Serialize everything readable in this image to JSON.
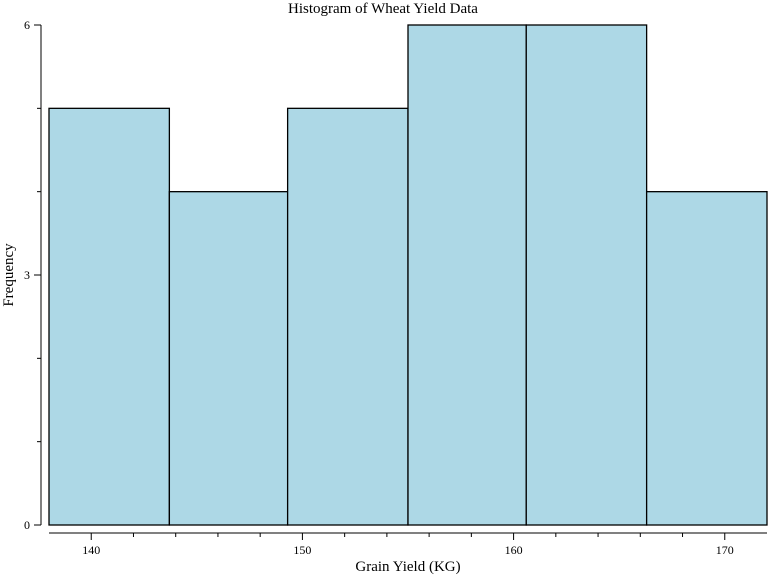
{
  "chart_data": {
    "type": "bar",
    "title": "Histogram of Wheat Yield Data",
    "xlabel": "Grain Yield (KG)",
    "ylabel": "Frequency",
    "bins": [
      {
        "start": 138.0,
        "end": 143.7,
        "count": 5
      },
      {
        "start": 143.7,
        "end": 149.3,
        "count": 4
      },
      {
        "start": 149.3,
        "end": 155.0,
        "count": 5
      },
      {
        "start": 155.0,
        "end": 160.6,
        "count": 6
      },
      {
        "start": 160.6,
        "end": 166.3,
        "count": 6
      },
      {
        "start": 166.3,
        "end": 172.0,
        "count": 4
      }
    ],
    "xlim": [
      138,
      172
    ],
    "ylim": [
      0,
      6
    ],
    "x_ticks_major": [
      "140",
      "150",
      "160",
      "170"
    ],
    "x_ticks_minor": [
      142,
      144,
      146,
      148,
      152,
      154,
      156,
      158,
      162,
      164,
      166,
      168
    ],
    "y_ticks_major": [
      "0",
      "3",
      "6"
    ],
    "y_ticks_minor": [
      1,
      2,
      4,
      5
    ],
    "grid": false
  }
}
